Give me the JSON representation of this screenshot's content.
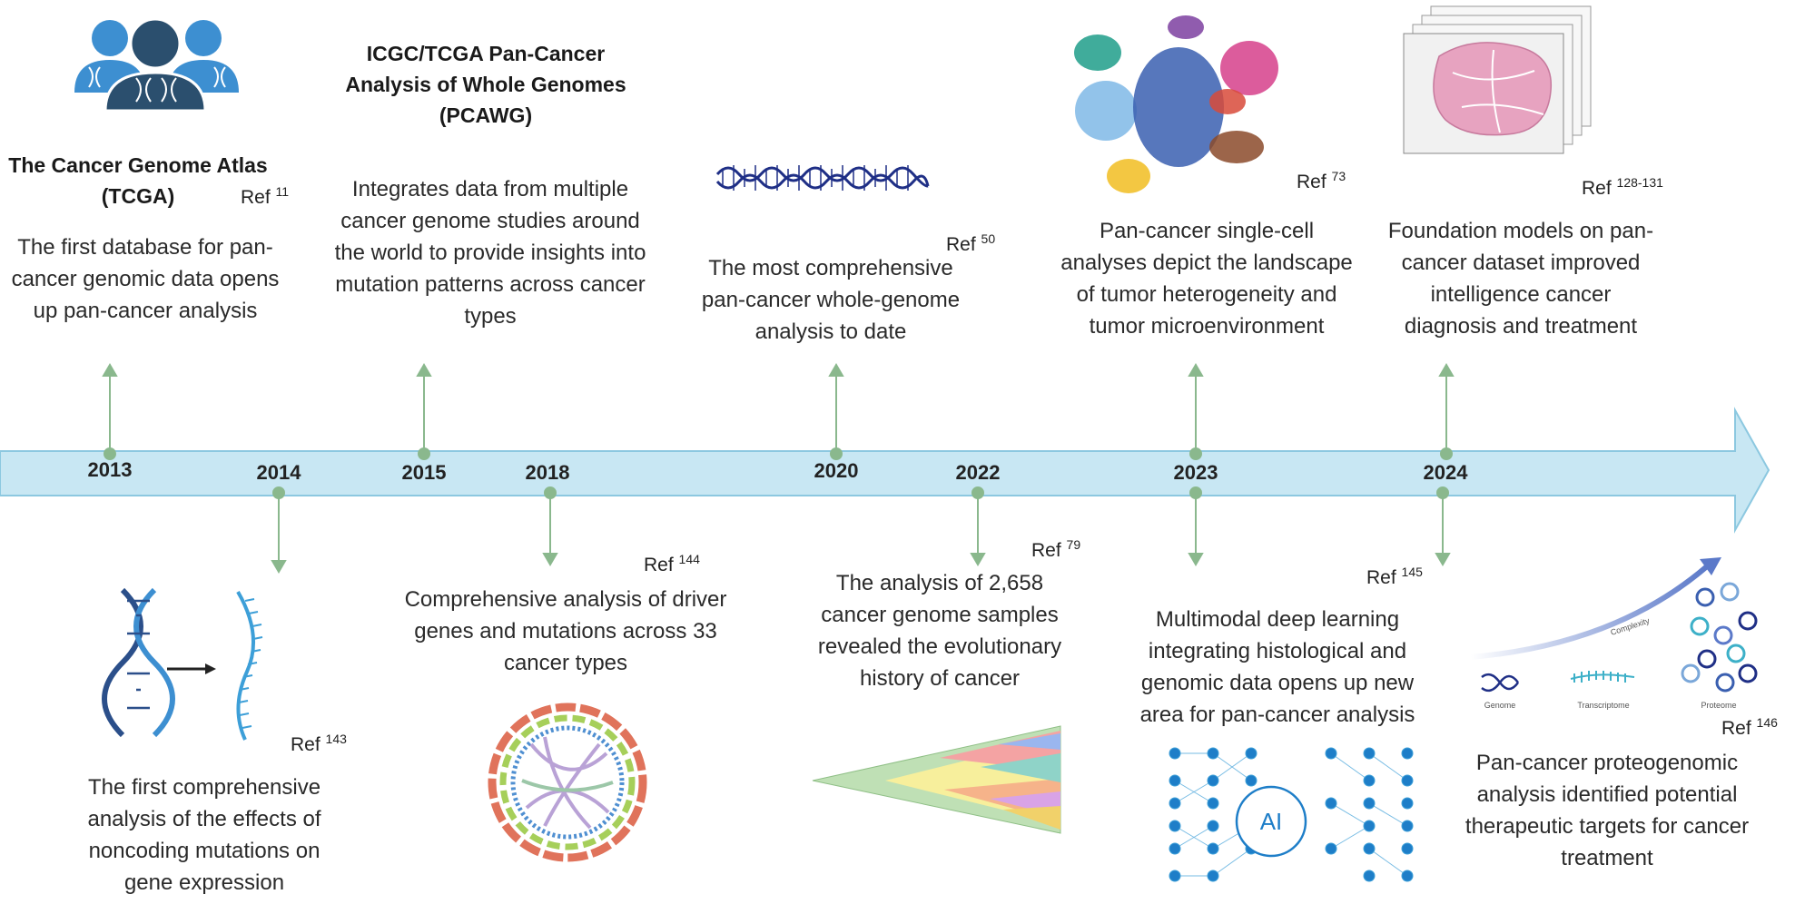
{
  "timeline": {
    "years": [
      "2013",
      "2014",
      "2015",
      "2018",
      "2020",
      "2022",
      "2023",
      "2024"
    ],
    "colors": {
      "bar": "#c8e7f3",
      "bar_stroke": "#8cc8e0",
      "connector": "#8ab88d"
    }
  },
  "events_above": {
    "tcga": {
      "title": "The Cancer Genome Atlas (TCGA)",
      "ref_label": "Ref",
      "ref_num": "11",
      "lines": [
        "The first database for pan-",
        "cancer genomic data opens",
        "up pan-cancer analysis"
      ]
    },
    "pcawg": {
      "title_lines": [
        "ICGC/TCGA Pan-Cancer",
        "Analysis of Whole Genomes",
        "(PCAWG)"
      ],
      "lines": [
        "Integrates data from multiple",
        "cancer genome studies around",
        "the world to provide insights into",
        "mutation patterns across cancer",
        "types"
      ]
    },
    "wgs": {
      "ref_label": "Ref",
      "ref_num": "50",
      "lines": [
        "The most comprehensive",
        "pan-cancer whole-genome",
        "analysis to date"
      ]
    },
    "singlecell": {
      "ref_label": "Ref",
      "ref_num": "73",
      "lines": [
        "Pan-cancer single-cell",
        "analyses depict the landscape",
        "of tumor heterogeneity and",
        "tumor microenvironment"
      ]
    },
    "foundation": {
      "ref_label": "Ref",
      "ref_num": "128-131",
      "lines": [
        "Foundation models on pan-",
        "cancer dataset improved",
        "intelligence cancer",
        "diagnosis and treatment"
      ]
    }
  },
  "events_below": {
    "noncoding": {
      "ref_label": "Ref",
      "ref_num": "143",
      "lines": [
        "The first comprehensive",
        "analysis of the effects of",
        "noncoding mutations on",
        "gene expression"
      ]
    },
    "driver": {
      "ref_label": "Ref",
      "ref_num": "144",
      "lines": [
        "Comprehensive analysis of driver",
        "genes and mutations across 33",
        "cancer types"
      ]
    },
    "evolution": {
      "ref_label": "Ref",
      "ref_num": "79",
      "lines": [
        "The analysis of 2,658",
        "cancer genome samples",
        "revealed the evolutionary",
        "history of cancer"
      ]
    },
    "multimodal": {
      "ref_label": "Ref",
      "ref_num": "145",
      "lines": [
        "Multimodal deep learning",
        "integrating histological and",
        "genomic data opens up new",
        "area for pan-cancer analysis"
      ],
      "nn_label": "AI"
    },
    "proteogenomic": {
      "ref_label": "Ref",
      "ref_num": "146",
      "lines": [
        "Pan-cancer proteogenomic",
        "analysis identified potential",
        "therapeutic targets for cancer",
        "treatment"
      ],
      "labels": {
        "genome": "Genome",
        "transcriptome": "Transcriptome",
        "proteome": "Proteome",
        "complexity": "Complexity"
      }
    }
  }
}
